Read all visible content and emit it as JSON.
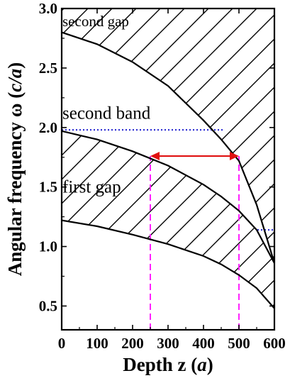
{
  "chart_data": {
    "type": "line",
    "xlabel_prefix": "Depth z (",
    "xlabel_unit": "a",
    "xlabel_suffix": ")",
    "ylabel_prefix": "Angular frequency ω (",
    "ylabel_unit": "c/a",
    "ylabel_suffix": ")",
    "xlim": [
      0,
      600
    ],
    "ylim": [
      0.3,
      3.0
    ],
    "xticks": [
      0,
      100,
      200,
      300,
      400,
      500,
      600
    ],
    "yticks": [
      0.5,
      1.0,
      1.5,
      2.0,
      2.5,
      3.0
    ],
    "ytick_labels": [
      "0.5",
      "1.0",
      "1.5",
      "2.0",
      "2.5",
      "3.0"
    ],
    "grid": false,
    "series": [
      {
        "x": [
          0,
          100,
          200,
          300,
          400,
          450,
          500,
          550,
          600
        ],
        "y": [
          2.8,
          2.7,
          2.55,
          2.35,
          2.06,
          1.9,
          1.72,
          1.35,
          0.86
        ]
      },
      {
        "x": [
          0,
          100,
          200,
          300,
          400,
          450,
          500,
          550,
          600
        ],
        "y": [
          1.97,
          1.9,
          1.8,
          1.68,
          1.52,
          1.42,
          1.3,
          1.14,
          0.86
        ]
      },
      {
        "x": [
          0,
          100,
          200,
          300,
          400,
          450,
          500,
          550,
          600
        ],
        "y": [
          1.22,
          1.17,
          1.1,
          1.02,
          0.92,
          0.85,
          0.76,
          0.65,
          0.48
        ]
      }
    ],
    "hatched_regions": [
      {
        "upper_series": 0,
        "lower_series": "top"
      },
      {
        "upper_series": 1,
        "lower_series": 2
      }
    ],
    "reference_lines": [
      {
        "x": [
          0,
          455
        ],
        "y": [
          1.98,
          1.98
        ],
        "color": "#1f1fcf",
        "style": "dotted"
      },
      {
        "x": [
          552,
          600
        ],
        "y": [
          1.14,
          1.14
        ],
        "color": "#1f1fcf",
        "style": "dotted"
      },
      {
        "x": [
          250,
          250
        ],
        "y": [
          0.3,
          1.76
        ],
        "color": "#ff22ff",
        "style": "dashed"
      },
      {
        "x": [
          500,
          500
        ],
        "y": [
          0.3,
          1.76
        ],
        "color": "#ff22ff",
        "style": "dashed"
      }
    ],
    "arrow": {
      "x_start": 250,
      "x_end": 500,
      "y": 1.76,
      "color": "#e01010"
    },
    "annotations": [
      {
        "text": "second gap",
        "x": 2,
        "y": 2.9,
        "size": "small"
      },
      {
        "text": "second band",
        "x": 2,
        "y": 2.12,
        "size": "large"
      },
      {
        "text": "first gap",
        "x": 2,
        "y": 1.5,
        "size": "large"
      }
    ]
  }
}
